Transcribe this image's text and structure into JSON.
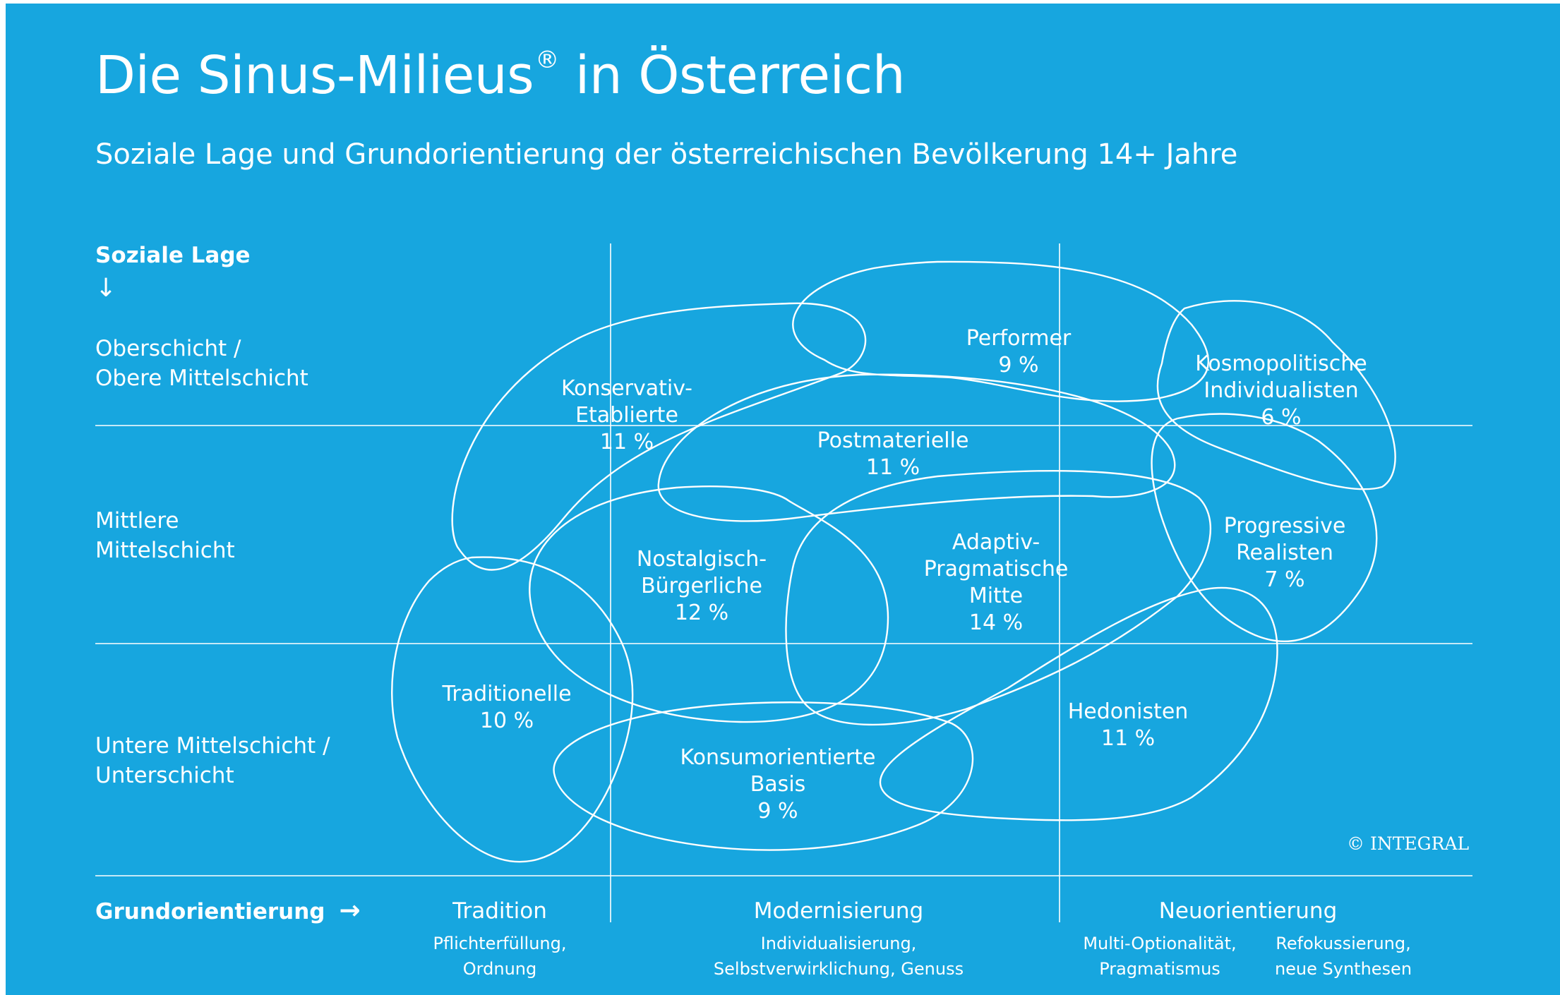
{
  "header": {
    "title_main": "Die Sinus-Milieus",
    "title_reg": "®",
    "title_tail": " in Österreich",
    "subtitle": "Soziale Lage und Grundorientierung der österreichischen Bevölkerung 14+ Jahre"
  },
  "y_axis": {
    "title": "Soziale Lage",
    "arrow": "↓",
    "rows": [
      {
        "line1": "Oberschicht /",
        "line2": "Obere Mittelschicht"
      },
      {
        "line1": "Mittlere",
        "line2": "Mittelschicht"
      },
      {
        "line1": "Untere Mittelschicht /",
        "line2": "Unterschicht"
      }
    ]
  },
  "x_axis": {
    "title": "Grundorientierung",
    "arrow": "→",
    "columns": [
      {
        "head": "Tradition",
        "sub1": "Pflichterfüllung,",
        "sub2": "Ordnung"
      },
      {
        "head": "Modernisierung",
        "sub1": "Individualisierung,",
        "sub2": "Selbstverwirklichung, Genuss"
      },
      {
        "head": "Neuorientierung",
        "subs": [
          {
            "sub1": "Multi-Optionalität,",
            "sub2": "Pragmatismus"
          },
          {
            "sub1": "Refokussierung,",
            "sub2": "neue Synthesen"
          }
        ]
      }
    ]
  },
  "milieus": [
    {
      "lines": [
        "Konservativ-",
        "Etablierte",
        "11 %"
      ]
    },
    {
      "lines": [
        "Performer",
        "9 %"
      ]
    },
    {
      "lines": [
        "Kosmopolitische",
        "Individualisten",
        "6 %"
      ]
    },
    {
      "lines": [
        "Postmaterielle",
        "11 %"
      ]
    },
    {
      "lines": [
        "Nostalgisch-",
        "Bürgerliche",
        "12 %"
      ]
    },
    {
      "lines": [
        "Adaptiv-",
        "Pragmatische",
        "Mitte",
        "14 %"
      ]
    },
    {
      "lines": [
        "Progressive",
        "Realisten",
        "7 %"
      ]
    },
    {
      "lines": [
        "Traditionelle",
        "10 %"
      ]
    },
    {
      "lines": [
        "Konsumorientierte",
        "Basis",
        "9 %"
      ]
    },
    {
      "lines": [
        "Hedonisten",
        "11 %"
      ]
    }
  ],
  "copyright": "© INTEGRAL",
  "colors": {
    "background": "#17a6df",
    "foreground": "#ffffff"
  }
}
